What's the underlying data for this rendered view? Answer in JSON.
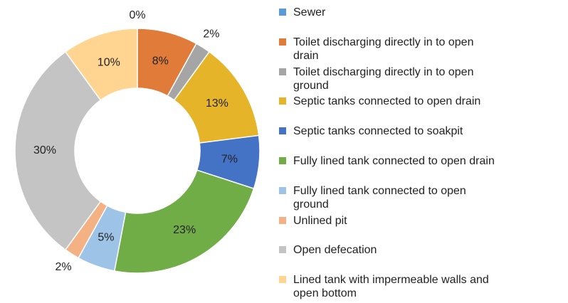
{
  "chart_data": {
    "type": "donut",
    "categories": [
      "Sewer",
      "Toilet discharging directly in to open drain",
      "Toilet discharging directly in to open ground",
      "Septic tanks connected to open drain",
      "Septic tanks connected to soakpit",
      "Fully lined tank connected to open drain",
      "Fully lined tank connected to open ground",
      "Unlined pit",
      "Open defecation",
      "Lined tank with impermeable walls and open bottom"
    ],
    "values": [
      0,
      8,
      2,
      13,
      7,
      23,
      5,
      2,
      30,
      10
    ],
    "value_labels": [
      "0%",
      "8%",
      "2%",
      "13%",
      "7%",
      "23%",
      "5%",
      "2%",
      "30%",
      "10%"
    ],
    "colors": [
      "#5b9bd5",
      "#e07b39",
      "#a5a5a5",
      "#e6b428",
      "#4472c4",
      "#70ad47",
      "#9dc3e6",
      "#f4b183",
      "#c4c4c4",
      "#ffd591"
    ],
    "legend": "right"
  }
}
